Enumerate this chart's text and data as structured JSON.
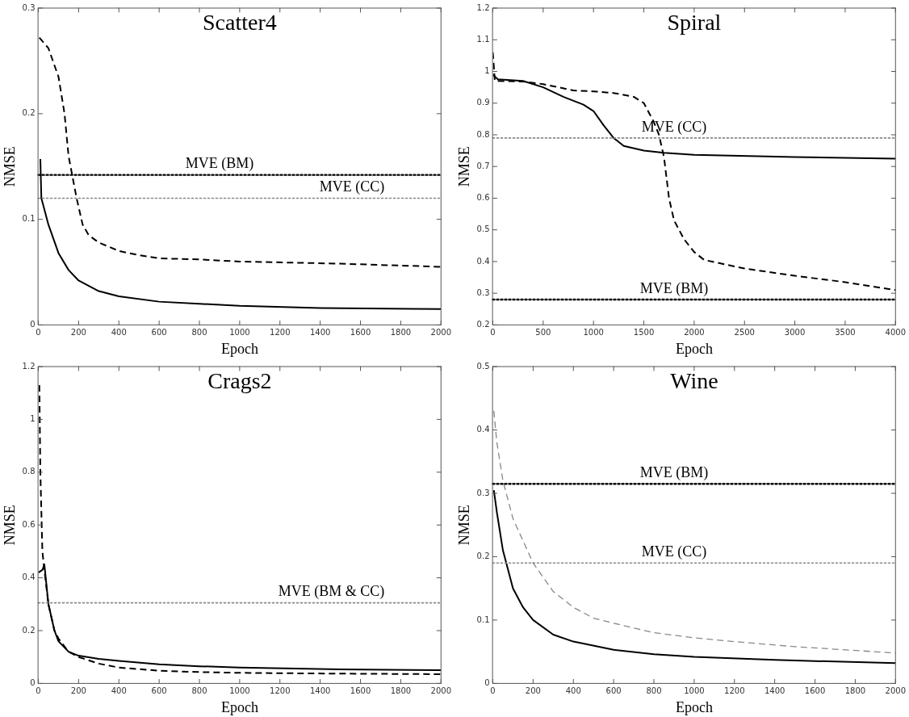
{
  "chart_data": [
    {
      "type": "line",
      "title": "Scatter4",
      "xlabel": "Epoch",
      "ylabel": "NMSE",
      "xlim": [
        0,
        2000
      ],
      "xticks": [
        0,
        200,
        400,
        600,
        800,
        1000,
        1200,
        1400,
        1600,
        1800,
        2000
      ],
      "ylim": [
        0,
        0.3
      ],
      "yticks": [
        0,
        0.1,
        0.2,
        0.3
      ],
      "legend": false,
      "series": [
        {
          "color": "#000000",
          "line_style": "solid",
          "x": [
            10,
            15,
            50,
            100,
            150,
            200,
            300,
            400,
            600,
            800,
            1000,
            1400,
            2000
          ],
          "values": [
            0.157,
            0.12,
            0.095,
            0.068,
            0.052,
            0.042,
            0.032,
            0.027,
            0.022,
            0.02,
            0.018,
            0.016,
            0.015
          ]
        },
        {
          "color": "#000000",
          "line_style": "dashed",
          "x": [
            5,
            50,
            100,
            130,
            150,
            170,
            190,
            220,
            250,
            300,
            400,
            500,
            600,
            800,
            1000,
            1500,
            2000
          ],
          "values": [
            0.272,
            0.262,
            0.235,
            0.2,
            0.16,
            0.14,
            0.12,
            0.095,
            0.085,
            0.078,
            0.07,
            0.066,
            0.063,
            0.062,
            0.06,
            0.058,
            0.055
          ]
        }
      ],
      "ref_lines": [
        {
          "axis": "y",
          "value": 0.142,
          "label": "MVE (BM)",
          "color": "#000000",
          "line_style": "dotted"
        },
        {
          "axis": "y",
          "value": 0.12,
          "label": "MVE (CC)",
          "color": "#888888",
          "line_style": "dotted"
        }
      ]
    },
    {
      "type": "line",
      "title": "Spiral",
      "xlabel": "Epoch",
      "ylabel": "NMSE",
      "xlim": [
        0,
        4000
      ],
      "xticks": [
        0,
        500,
        1000,
        1500,
        2000,
        2500,
        3000,
        3500,
        4000
      ],
      "ylim": [
        0.2,
        1.2
      ],
      "yticks": [
        0.2,
        0.3,
        0.4,
        0.5,
        0.6,
        0.7,
        0.8,
        0.9,
        1,
        1.1,
        1.2
      ],
      "legend": false,
      "series": [
        {
          "color": "#000000",
          "line_style": "solid",
          "x": [
            0,
            50,
            300,
            500,
            700,
            900,
            1000,
            1100,
            1200,
            1300,
            1500,
            1700,
            2000,
            3000,
            4000
          ],
          "values": [
            0.99,
            0.975,
            0.97,
            0.95,
            0.92,
            0.895,
            0.875,
            0.83,
            0.79,
            0.765,
            0.75,
            0.743,
            0.737,
            0.73,
            0.725
          ]
        },
        {
          "color": "#000000",
          "line_style": "dashed",
          "x": [
            0,
            20,
            300,
            500,
            800,
            1000,
            1200,
            1400,
            1500,
            1600,
            1650,
            1700,
            1750,
            1800,
            1900,
            2000,
            2100,
            2500,
            3000,
            3500,
            4000
          ],
          "values": [
            1.06,
            0.97,
            0.968,
            0.96,
            0.94,
            0.937,
            0.932,
            0.92,
            0.9,
            0.84,
            0.8,
            0.73,
            0.6,
            0.53,
            0.47,
            0.43,
            0.405,
            0.378,
            0.355,
            0.335,
            0.31
          ]
        }
      ],
      "ref_lines": [
        {
          "axis": "y",
          "value": 0.79,
          "label": "MVE (CC)",
          "color": "#888888",
          "line_style": "dotted"
        },
        {
          "axis": "y",
          "value": 0.28,
          "label": "MVE (BM)",
          "color": "#000000",
          "line_style": "dotted"
        }
      ]
    },
    {
      "type": "line",
      "title": "Crags2",
      "xlabel": "Epoch",
      "ylabel": "NMSE",
      "xlim": [
        0,
        2000
      ],
      "xticks": [
        0,
        200,
        400,
        600,
        800,
        1000,
        1200,
        1400,
        1600,
        1800,
        2000
      ],
      "ylim": [
        0,
        1.2
      ],
      "yticks": [
        0,
        0.2,
        0.4,
        0.6,
        0.8,
        1,
        1.2
      ],
      "legend": false,
      "series": [
        {
          "color": "#000000",
          "line_style": "solid",
          "x": [
            0,
            20,
            30,
            50,
            80,
            100,
            150,
            200,
            300,
            400,
            600,
            800,
            1000,
            1500,
            2000
          ],
          "values": [
            0.42,
            0.43,
            0.45,
            0.3,
            0.2,
            0.16,
            0.12,
            0.105,
            0.093,
            0.085,
            0.072,
            0.065,
            0.06,
            0.053,
            0.05
          ]
        },
        {
          "color": "#000000",
          "line_style": "dashed",
          "x": [
            5,
            10,
            20,
            30,
            50,
            80,
            100,
            150,
            200,
            300,
            400,
            600,
            800,
            1000,
            1500,
            2000
          ],
          "values": [
            1.13,
            0.8,
            0.5,
            0.43,
            0.3,
            0.2,
            0.17,
            0.12,
            0.1,
            0.075,
            0.06,
            0.048,
            0.043,
            0.04,
            0.037,
            0.035
          ]
        }
      ],
      "ref_lines": [
        {
          "axis": "y",
          "value": 0.305,
          "label": "MVE (BM & CC)",
          "color": "#888888",
          "line_style": "dotted"
        }
      ]
    },
    {
      "type": "line",
      "title": "Wine",
      "xlabel": "Epoch",
      "ylabel": "NMSE",
      "xlim": [
        0,
        2000
      ],
      "xticks": [
        0,
        200,
        400,
        600,
        800,
        1000,
        1200,
        1400,
        1600,
        1800,
        2000
      ],
      "ylim": [
        0,
        0.5
      ],
      "yticks": [
        0,
        0.1,
        0.2,
        0.3,
        0.4,
        0.5
      ],
      "legend": false,
      "series": [
        {
          "color": "#000000",
          "line_style": "solid",
          "x": [
            5,
            20,
            50,
            100,
            150,
            200,
            300,
            400,
            600,
            800,
            1000,
            1400,
            2000
          ],
          "values": [
            0.305,
            0.27,
            0.21,
            0.15,
            0.12,
            0.1,
            0.077,
            0.066,
            0.053,
            0.046,
            0.042,
            0.037,
            0.032
          ]
        },
        {
          "color": "#888888",
          "line_style": "dashed",
          "x": [
            5,
            20,
            50,
            100,
            200,
            300,
            400,
            500,
            600,
            800,
            1000,
            1200,
            1500,
            2000
          ],
          "values": [
            0.43,
            0.38,
            0.32,
            0.26,
            0.19,
            0.145,
            0.12,
            0.103,
            0.095,
            0.08,
            0.072,
            0.066,
            0.058,
            0.048
          ]
        }
      ],
      "ref_lines": [
        {
          "axis": "y",
          "value": 0.315,
          "label": "MVE (BM)",
          "color": "#000000",
          "line_style": "dotted"
        },
        {
          "axis": "y",
          "value": 0.19,
          "label": "MVE (CC)",
          "color": "#888888",
          "line_style": "dotted"
        }
      ]
    }
  ]
}
